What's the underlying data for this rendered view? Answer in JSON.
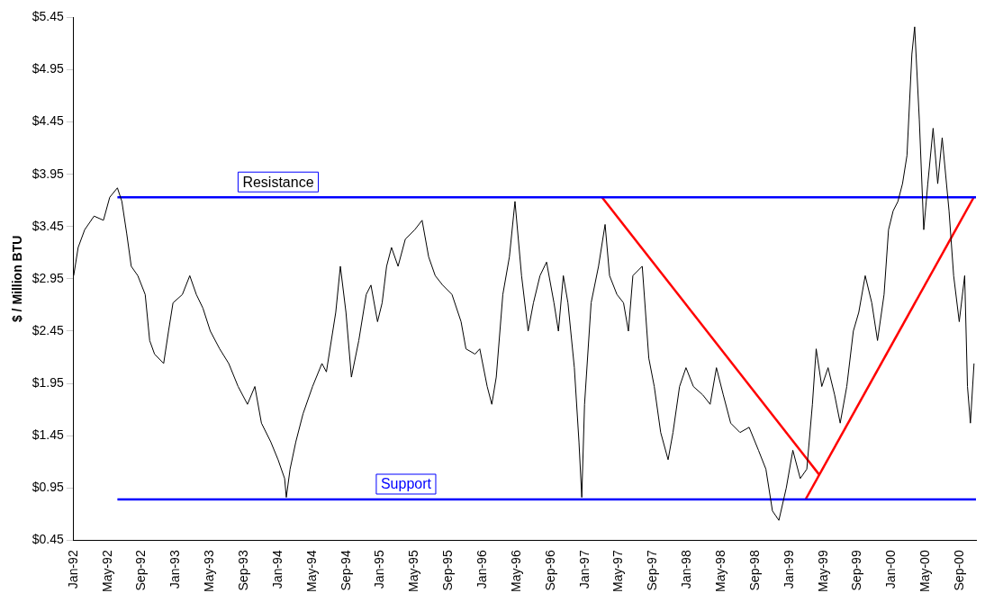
{
  "chart_data": {
    "type": "line",
    "ylabel": "$ / Million BTU",
    "xlim": [
      "1992-01-01",
      "2000-10-28"
    ],
    "ylim": [
      0.45,
      5.45
    ],
    "yticks": [
      {
        "value": 0.45,
        "label": "$0.45"
      },
      {
        "value": 0.95,
        "label": "$0.95"
      },
      {
        "value": 1.45,
        "label": "$1.45"
      },
      {
        "value": 1.95,
        "label": "$1.95"
      },
      {
        "value": 2.45,
        "label": "$2.45"
      },
      {
        "value": 2.95,
        "label": "$2.95"
      },
      {
        "value": 3.45,
        "label": "$3.45"
      },
      {
        "value": 3.95,
        "label": "$3.95"
      },
      {
        "value": 4.45,
        "label": "$4.45"
      },
      {
        "value": 4.95,
        "label": "$4.95"
      },
      {
        "value": 5.45,
        "label": "$5.45"
      }
    ],
    "xticks": [
      {
        "value": "1992-01",
        "label": "Jan-92"
      },
      {
        "value": "1992-05",
        "label": "May-92"
      },
      {
        "value": "1992-09",
        "label": "Sep-92"
      },
      {
        "value": "1993-01",
        "label": "Jan-93"
      },
      {
        "value": "1993-05",
        "label": "May-93"
      },
      {
        "value": "1993-09",
        "label": "Sep-93"
      },
      {
        "value": "1994-01",
        "label": "Jan-94"
      },
      {
        "value": "1994-05",
        "label": "May-94"
      },
      {
        "value": "1994-09",
        "label": "Sep-94"
      },
      {
        "value": "1995-01",
        "label": "Jan-95"
      },
      {
        "value": "1995-05",
        "label": "May-95"
      },
      {
        "value": "1995-09",
        "label": "Sep-95"
      },
      {
        "value": "1996-01",
        "label": "Jan-96"
      },
      {
        "value": "1996-05",
        "label": "May-96"
      },
      {
        "value": "1996-09",
        "label": "Sep-96"
      },
      {
        "value": "1997-01",
        "label": "Jan-97"
      },
      {
        "value": "1997-05",
        "label": "May-97"
      },
      {
        "value": "1997-09",
        "label": "Sep-97"
      },
      {
        "value": "1998-01",
        "label": "Jan-98"
      },
      {
        "value": "1998-05",
        "label": "May-98"
      },
      {
        "value": "1998-09",
        "label": "Sep-98"
      },
      {
        "value": "1999-01",
        "label": "Jan-99"
      },
      {
        "value": "1999-05",
        "label": "May-99"
      },
      {
        "value": "1999-09",
        "label": "Sep-99"
      },
      {
        "value": "2000-01",
        "label": "Jan-00"
      },
      {
        "value": "2000-05",
        "label": "May-00"
      },
      {
        "value": "2000-09",
        "label": "Sep-00"
      }
    ],
    "grid": false,
    "legend": false,
    "marker": "none",
    "series": [
      {
        "color": "#000000",
        "x": [
          "1992-01-01",
          "1992-01-17",
          "1992-02-10",
          "1992-03-13",
          "1992-04-16",
          "1992-05-08",
          "1992-06-05",
          "1992-06-21",
          "1992-07-08",
          "1992-07-24",
          "1992-08-17",
          "1992-09-13",
          "1992-09-29",
          "1992-10-16",
          "1992-11-18",
          "1992-12-05",
          "1992-12-21",
          "1993-01-24",
          "1993-02-20",
          "1993-03-13",
          "1993-04-06",
          "1993-05-02",
          "1993-06-05",
          "1993-07-07",
          "1993-08-10",
          "1993-09-13",
          "1993-10-09",
          "1993-11-02",
          "1993-12-05",
          "1993-12-31",
          "1994-01-24",
          "1994-01-30",
          "1994-02-13",
          "1994-03-03",
          "1994-03-29",
          "1994-05-02",
          "1994-06-05",
          "1994-06-21",
          "1994-07-24",
          "1994-08-10",
          "1994-08-30",
          "1994-09-19",
          "1994-10-15",
          "1994-11-11",
          "1994-11-28",
          "1994-12-21",
          "1995-01-07",
          "1995-01-23",
          "1995-02-10",
          "1995-03-03",
          "1995-03-29",
          "1995-05-02",
          "1995-05-28",
          "1995-06-21",
          "1995-07-14",
          "1995-08-10",
          "1995-09-13",
          "1995-10-15",
          "1995-11-02",
          "1995-12-04",
          "1995-12-21",
          "1996-01-17",
          "1996-02-03",
          "1996-02-19",
          "1996-03-12",
          "1996-04-05",
          "1996-04-25",
          "1996-05-18",
          "1996-06-11",
          "1996-06-30",
          "1996-07-23",
          "1996-08-16",
          "1996-09-12",
          "1996-09-28",
          "1996-10-15",
          "1996-11-01",
          "1996-11-24",
          "1996-12-10",
          "1996-12-20",
          "1996-12-30",
          "1997-01-23",
          "1997-02-19",
          "1997-03-12",
          "1997-03-28",
          "1997-04-24",
          "1997-05-17",
          "1997-06-04",
          "1997-06-20",
          "1997-07-23",
          "1997-08-16",
          "1997-09-05",
          "1997-09-28",
          "1997-10-24",
          "1997-11-11",
          "1997-12-04",
          "1997-12-27",
          "1998-01-23",
          "1998-02-26",
          "1998-03-22",
          "1998-04-14",
          "1998-05-08",
          "1998-06-04",
          "1998-07-07",
          "1998-08-09",
          "1998-09-12",
          "1998-10-08",
          "1998-11-01",
          "1998-11-24",
          "1998-12-20",
          "1999-01-13",
          "1999-02-09",
          "1999-03-02",
          "1999-03-22",
          "1999-04-05",
          "1999-04-25",
          "1999-05-17",
          "1999-06-10",
          "1999-06-30",
          "1999-07-23",
          "1999-08-16",
          "1999-09-05",
          "1999-09-28",
          "1999-10-21",
          "1999-11-11",
          "1999-12-04",
          "1999-12-20",
          "2000-01-06",
          "2000-01-23",
          "2000-02-09",
          "2000-02-25",
          "2000-03-12",
          "2000-03-22",
          "2000-04-08",
          "2000-04-24",
          "2000-05-08",
          "2000-05-27",
          "2000-06-13",
          "2000-06-29",
          "2000-07-23",
          "2000-08-09",
          "2000-08-29",
          "2000-09-18",
          "2000-09-28",
          "2000-10-08",
          "2000-10-21"
        ],
        "values": [
          2.98,
          3.25,
          3.42,
          3.55,
          3.51,
          3.73,
          3.82,
          3.69,
          3.38,
          3.07,
          2.98,
          2.8,
          2.36,
          2.23,
          2.14,
          2.45,
          2.72,
          2.8,
          2.98,
          2.8,
          2.67,
          2.45,
          2.28,
          2.14,
          1.92,
          1.75,
          1.92,
          1.57,
          1.39,
          1.22,
          1.04,
          0.86,
          1.13,
          1.39,
          1.66,
          1.92,
          2.14,
          2.06,
          2.63,
          3.07,
          2.63,
          2.01,
          2.36,
          2.8,
          2.89,
          2.54,
          2.72,
          3.07,
          3.25,
          3.07,
          3.33,
          3.42,
          3.51,
          3.16,
          2.98,
          2.89,
          2.8,
          2.54,
          2.28,
          2.23,
          2.28,
          1.92,
          1.75,
          2.01,
          2.8,
          3.16,
          3.69,
          2.98,
          2.45,
          2.72,
          2.98,
          3.11,
          2.72,
          2.45,
          2.98,
          2.72,
          2.1,
          1.39,
          0.86,
          1.75,
          2.72,
          3.07,
          3.47,
          2.98,
          2.8,
          2.72,
          2.45,
          2.98,
          3.07,
          2.19,
          1.92,
          1.48,
          1.22,
          1.48,
          1.92,
          2.1,
          1.92,
          1.84,
          1.75,
          2.1,
          1.84,
          1.57,
          1.48,
          1.53,
          1.31,
          1.13,
          0.73,
          0.64,
          0.95,
          1.31,
          1.04,
          1.13,
          1.75,
          2.28,
          1.92,
          2.1,
          1.84,
          1.57,
          1.92,
          2.45,
          2.63,
          2.98,
          2.72,
          2.36,
          2.8,
          3.42,
          3.6,
          3.69,
          3.86,
          4.13,
          5.1,
          5.36,
          4.48,
          3.42,
          3.86,
          4.39,
          3.86,
          4.3,
          3.6,
          2.98,
          2.54,
          2.98,
          1.92,
          1.57,
          2.14
        ]
      },
      {
        "color": "#0000ff",
        "x": [
          "1992-06-05",
          "2000-10-28"
        ],
        "values": [
          3.73,
          3.73
        ]
      },
      {
        "color": "#0000ff",
        "x": [
          "1992-06-05",
          "2000-10-28"
        ],
        "values": [
          0.84,
          0.84
        ]
      },
      {
        "color": "#ff0000",
        "x": [
          "1997-03-01",
          "1999-04-15"
        ],
        "values": [
          3.73,
          1.08
        ]
      },
      {
        "color": "#ff0000",
        "x": [
          "1999-02-28",
          "2000-10-20"
        ],
        "values": [
          0.84,
          3.73
        ]
      }
    ],
    "annotations": [
      {
        "text": "Resistance",
        "x": "1994-01-01",
        "y": 3.73
      },
      {
        "text": "Support",
        "x": "1995-04-01",
        "y": 0.84
      }
    ]
  }
}
